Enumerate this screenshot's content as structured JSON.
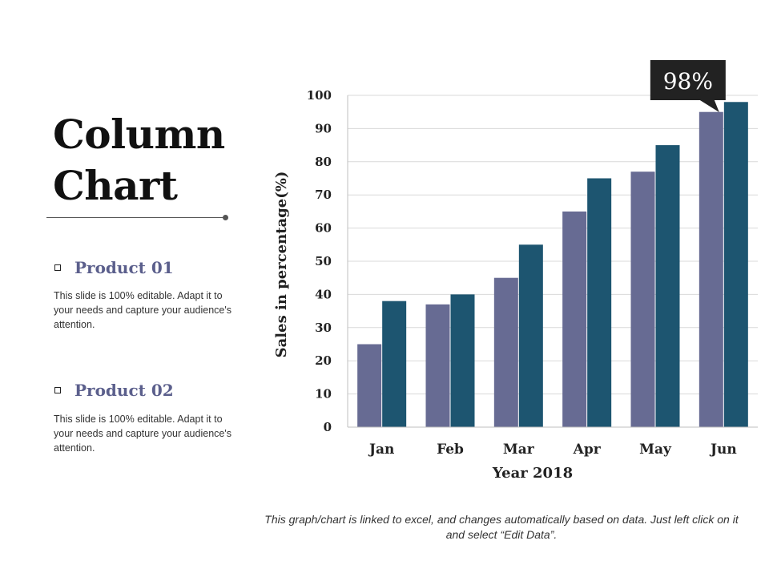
{
  "slide": {
    "title_line1": "Column",
    "title_line2": "Chart"
  },
  "products": [
    {
      "title": "Product 01",
      "description": "This slide is 100% editable. Adapt it to your needs and capture your audience's attention."
    },
    {
      "title": "Product 02",
      "description": "This slide is 100% editable. Adapt it to your needs and capture your audience's attention."
    }
  ],
  "footnote": "This graph/chart is linked to excel, and changes automatically based on data. Just left click on it and select “Edit Data”.",
  "chart_data": {
    "type": "bar",
    "categories": [
      "Jan",
      "Feb",
      "Mar",
      "Apr",
      "May",
      "Jun"
    ],
    "series": [
      {
        "name": "Product 01",
        "values": [
          25,
          37,
          45,
          65,
          77,
          95
        ],
        "color": "#676b93"
      },
      {
        "name": "Product 02",
        "values": [
          38,
          40,
          55,
          75,
          85,
          98
        ],
        "color": "#1d5570"
      }
    ],
    "xlabel": "Year 2018",
    "ylabel": "Sales in percentage(%)",
    "ylim": [
      0,
      100
    ],
    "yticks": [
      0,
      10,
      20,
      30,
      40,
      50,
      60,
      70,
      80,
      90,
      100
    ],
    "grid": true,
    "annotation": {
      "text": "98%",
      "category": "Jun",
      "series": 1
    },
    "annotation_color": "#222222"
  }
}
